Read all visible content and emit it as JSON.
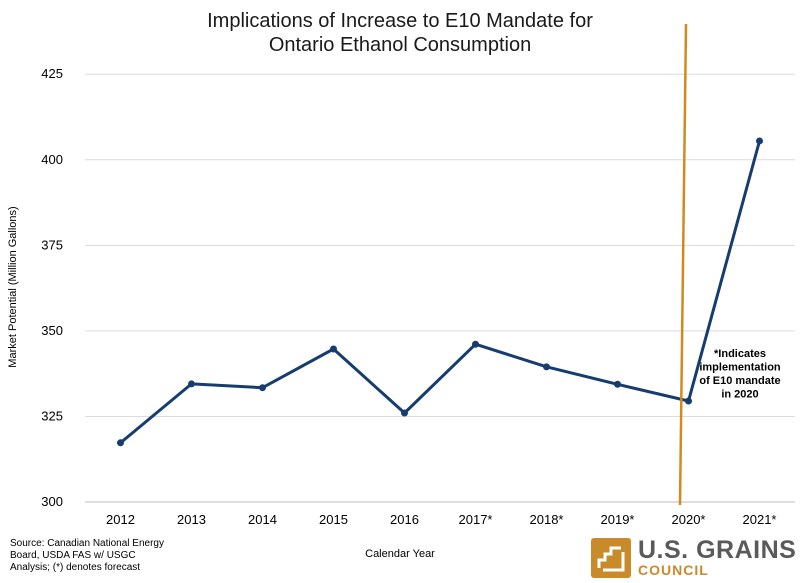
{
  "title_line1": "Implications of Increase to E10 Mandate for",
  "title_line2": "Ontario Ethanol Consumption",
  "source_line1": "Source: Canadian National Energy",
  "source_line2": "Board, USDA FAS w/ USGC",
  "source_line3": "Analysis; (*) denotes forecast",
  "logo_line1": "U.S. GRAINS",
  "logo_line2": "COUNCIL",
  "chart_data": {
    "type": "line",
    "title": "Implications of Increase to E10 Mandate for Ontario Ethanol Consumption",
    "xlabel": "Calendar Year",
    "ylabel": "Market Potential (Million Gallons)",
    "categories": [
      "2012",
      "2013",
      "2014",
      "2015",
      "2016",
      "2017*",
      "2018*",
      "2019*",
      "2020*",
      "2021*"
    ],
    "values": [
      317.3,
      334.5,
      333.4,
      344.7,
      326.0,
      346.1,
      339.5,
      334.4,
      329.5,
      405.5
    ],
    "ylim": [
      300,
      435
    ],
    "yticks": [
      300,
      325,
      350,
      375,
      400,
      425
    ],
    "grid": true,
    "line_color": "#163d6f",
    "mandate_line_color": "#d4891e",
    "annotation": [
      "*Indicates",
      "implementation",
      "of E10 mandate",
      "in 2020"
    ]
  }
}
